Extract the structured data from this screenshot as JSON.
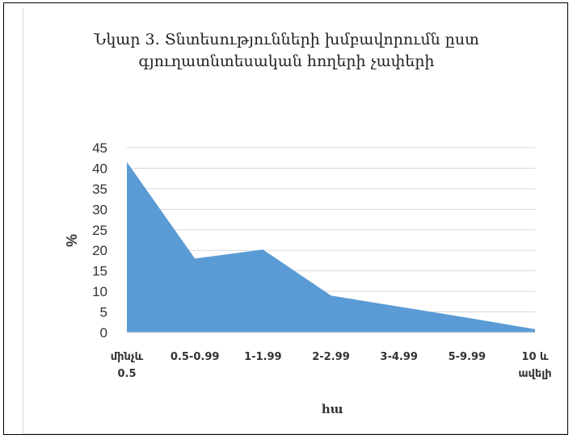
{
  "chart_data": {
    "type": "area",
    "title_line1": "Նկար 3. Տնտեսությունների խմբավորումն ըստ",
    "title_line2": "գյուղատնտեսական հողերի չափերի",
    "categories": [
      [
        "մինչև",
        "0.5"
      ],
      [
        "0.5-0.99"
      ],
      [
        "1-1.99"
      ],
      [
        "2-2.99"
      ],
      [
        "3-4.99"
      ],
      [
        "5-9.99"
      ],
      [
        "10 և",
        "ավելի"
      ]
    ],
    "values": [
      41.5,
      18,
      20.2,
      9,
      6.3,
      3.6,
      0.8
    ],
    "ylabel": "%",
    "xlabel": "հա",
    "ylim": [
      0,
      45
    ],
    "yticks": [
      0,
      5,
      10,
      15,
      20,
      25,
      30,
      35,
      40,
      45
    ],
    "grid": "horizontal",
    "legend": "none",
    "fill_color": "#5b9bd5"
  }
}
